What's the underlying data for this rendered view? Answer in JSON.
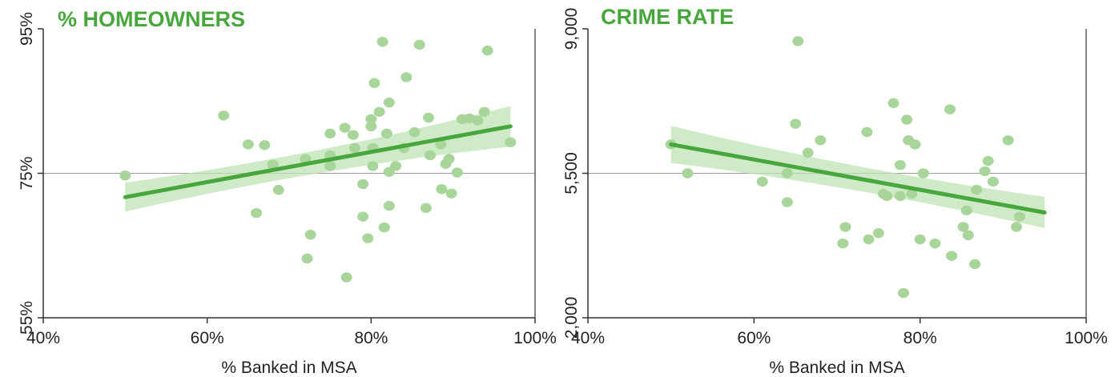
{
  "colors": {
    "accent": "#47a63c",
    "points": "#a8d59a",
    "band": "#bfe3b3",
    "axis": "#333333",
    "refline": "#999999"
  },
  "chart_data": [
    {
      "type": "scatter",
      "title": "% HOMEOWNERS",
      "xlabel": "% Banked in MSA",
      "ylabel": "",
      "xlim": [
        40,
        100
      ],
      "ylim": [
        55,
        95
      ],
      "x_ticks": [
        "40%",
        "60%",
        "80%",
        "100%"
      ],
      "y_ticks": [
        "55%",
        "75%",
        "95%"
      ],
      "reference_y": 75,
      "grid": false,
      "trend": {
        "x": [
          50,
          97
        ],
        "y": [
          71.7,
          81.5
        ],
        "band_halfwidth_start": 2.0,
        "band_halfwidth_mid": 0.8,
        "band_halfwidth_end": 2.8
      },
      "points": [
        {
          "x": 50,
          "y": 74.7
        },
        {
          "x": 62,
          "y": 83
        },
        {
          "x": 65,
          "y": 79
        },
        {
          "x": 67,
          "y": 78.9
        },
        {
          "x": 66,
          "y": 69.5
        },
        {
          "x": 68,
          "y": 76.2
        },
        {
          "x": 68.7,
          "y": 72.7
        },
        {
          "x": 72,
          "y": 77
        },
        {
          "x": 72.6,
          "y": 66.5
        },
        {
          "x": 72.2,
          "y": 63.2
        },
        {
          "x": 75,
          "y": 80.5
        },
        {
          "x": 75,
          "y": 77.5
        },
        {
          "x": 75,
          "y": 76
        },
        {
          "x": 76.8,
          "y": 81.3
        },
        {
          "x": 77,
          "y": 60.6
        },
        {
          "x": 77.8,
          "y": 80.3
        },
        {
          "x": 78,
          "y": 78.5
        },
        {
          "x": 79,
          "y": 73.5
        },
        {
          "x": 79,
          "y": 69
        },
        {
          "x": 79.6,
          "y": 66
        },
        {
          "x": 80,
          "y": 82.5
        },
        {
          "x": 80,
          "y": 81.5
        },
        {
          "x": 80.2,
          "y": 78.5
        },
        {
          "x": 80.2,
          "y": 76
        },
        {
          "x": 80.4,
          "y": 87.5
        },
        {
          "x": 81,
          "y": 83.5
        },
        {
          "x": 81.4,
          "y": 93.2
        },
        {
          "x": 81.6,
          "y": 67.5
        },
        {
          "x": 81.9,
          "y": 80.5
        },
        {
          "x": 82.2,
          "y": 84.8
        },
        {
          "x": 82.2,
          "y": 75.2
        },
        {
          "x": 82.2,
          "y": 70.5
        },
        {
          "x": 83,
          "y": 76
        },
        {
          "x": 84,
          "y": 78.5
        },
        {
          "x": 84.3,
          "y": 88.3
        },
        {
          "x": 85.3,
          "y": 80.7
        },
        {
          "x": 85.9,
          "y": 92.8
        },
        {
          "x": 86.7,
          "y": 70.2
        },
        {
          "x": 87,
          "y": 82.7
        },
        {
          "x": 87.2,
          "y": 77.5
        },
        {
          "x": 88.5,
          "y": 79
        },
        {
          "x": 88.6,
          "y": 72.8
        },
        {
          "x": 89.1,
          "y": 76.3
        },
        {
          "x": 89.5,
          "y": 77
        },
        {
          "x": 89.8,
          "y": 72.2
        },
        {
          "x": 90.5,
          "y": 75.1
        },
        {
          "x": 91.1,
          "y": 82.5
        },
        {
          "x": 92,
          "y": 82.6
        },
        {
          "x": 93,
          "y": 82.3
        },
        {
          "x": 93.8,
          "y": 83.5
        },
        {
          "x": 94.2,
          "y": 92
        },
        {
          "x": 97,
          "y": 79.3
        }
      ]
    },
    {
      "type": "scatter",
      "title": "CRIME RATE",
      "xlabel": "% Banked in MSA",
      "ylabel": "",
      "xlim": [
        40,
        100
      ],
      "ylim": [
        2000,
        9000
      ],
      "x_ticks": [
        "40%",
        "60%",
        "80%",
        "100%"
      ],
      "y_ticks": [
        "2,000",
        "5,500",
        "9,000"
      ],
      "reference_y": 5500,
      "grid": false,
      "trend": {
        "x": [
          50,
          95
        ],
        "y": [
          6200,
          4550
        ],
        "band_halfwidth_start": 450,
        "band_halfwidth_mid": 180,
        "band_halfwidth_end": 380
      },
      "points": [
        {
          "x": 50,
          "y": 6200
        },
        {
          "x": 52,
          "y": 5500
        },
        {
          "x": 61,
          "y": 5300
        },
        {
          "x": 64,
          "y": 5500
        },
        {
          "x": 64,
          "y": 4800
        },
        {
          "x": 65,
          "y": 6700
        },
        {
          "x": 65.3,
          "y": 8700
        },
        {
          "x": 66.5,
          "y": 6000
        },
        {
          "x": 68,
          "y": 6300
        },
        {
          "x": 70.7,
          "y": 3800
        },
        {
          "x": 71,
          "y": 4200
        },
        {
          "x": 73.6,
          "y": 6500
        },
        {
          "x": 73.8,
          "y": 3900
        },
        {
          "x": 75,
          "y": 4050
        },
        {
          "x": 75.6,
          "y": 5000
        },
        {
          "x": 76,
          "y": 4950
        },
        {
          "x": 76.8,
          "y": 7200
        },
        {
          "x": 77.6,
          "y": 5700
        },
        {
          "x": 77.6,
          "y": 4950
        },
        {
          "x": 78,
          "y": 2600
        },
        {
          "x": 78.4,
          "y": 6800
        },
        {
          "x": 78.6,
          "y": 6300
        },
        {
          "x": 79,
          "y": 5000
        },
        {
          "x": 79.4,
          "y": 6200
        },
        {
          "x": 80,
          "y": 3900
        },
        {
          "x": 80.4,
          "y": 5500
        },
        {
          "x": 81.8,
          "y": 3800
        },
        {
          "x": 83.6,
          "y": 7050
        },
        {
          "x": 83.8,
          "y": 3500
        },
        {
          "x": 85.2,
          "y": 4200
        },
        {
          "x": 85.6,
          "y": 4600
        },
        {
          "x": 85.8,
          "y": 4000
        },
        {
          "x": 86.6,
          "y": 3300
        },
        {
          "x": 86.8,
          "y": 5100
        },
        {
          "x": 87.8,
          "y": 5550
        },
        {
          "x": 88.2,
          "y": 5800
        },
        {
          "x": 88.8,
          "y": 5300
        },
        {
          "x": 90.6,
          "y": 6300
        },
        {
          "x": 91.6,
          "y": 4200
        },
        {
          "x": 92,
          "y": 4450
        }
      ]
    }
  ]
}
